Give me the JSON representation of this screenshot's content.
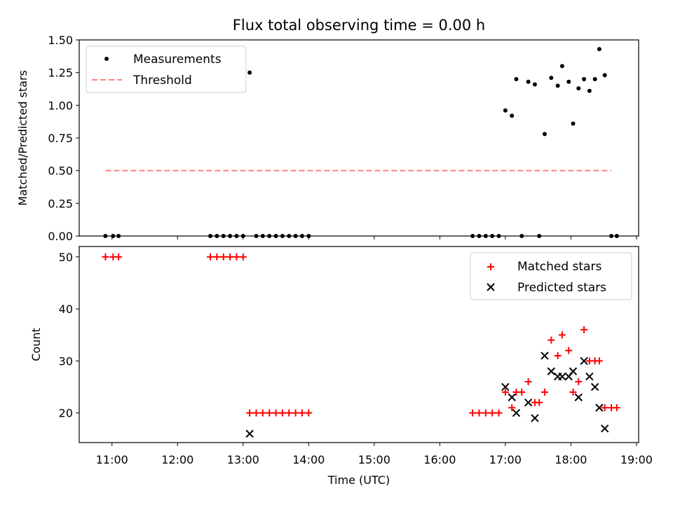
{
  "title": "Flux total observing time = 0.00 h",
  "chart_data": [
    {
      "type": "scatter",
      "panel": "top",
      "title": "Flux total observing time = 0.00 h",
      "xlabel": "",
      "ylabel": "Matched/Predicted stars",
      "ylim": [
        0.0,
        1.5
      ],
      "xlim": [
        "10:30",
        "19:02"
      ],
      "yticks": [
        "0.00",
        "0.25",
        "0.50",
        "0.75",
        "1.00",
        "1.25",
        "1.50"
      ],
      "legend_position": "top-left",
      "legend": [
        {
          "label": "Measurements",
          "marker": "dot",
          "color": "#000000"
        },
        {
          "label": "Threshold",
          "marker": "dashed-line",
          "color": "#ff8080"
        }
      ],
      "threshold": {
        "value": 0.5,
        "x_start": "10:54",
        "x_end": "18:37"
      },
      "series": [
        {
          "name": "Measurements",
          "points": [
            {
              "x": "10:54",
              "y": 0.0
            },
            {
              "x": "11:01",
              "y": 0.0
            },
            {
              "x": "11:06",
              "y": 0.0
            },
            {
              "x": "12:30",
              "y": 0.0
            },
            {
              "x": "12:36",
              "y": 0.0
            },
            {
              "x": "12:42",
              "y": 0.0
            },
            {
              "x": "12:48",
              "y": 0.0
            },
            {
              "x": "12:54",
              "y": 0.0
            },
            {
              "x": "13:00",
              "y": 0.0
            },
            {
              "x": "13:06",
              "y": 1.25
            },
            {
              "x": "13:12",
              "y": 0.0
            },
            {
              "x": "13:18",
              "y": 0.0
            },
            {
              "x": "13:24",
              "y": 0.0
            },
            {
              "x": "13:30",
              "y": 0.0
            },
            {
              "x": "13:36",
              "y": 0.0
            },
            {
              "x": "13:42",
              "y": 0.0
            },
            {
              "x": "13:48",
              "y": 0.0
            },
            {
              "x": "13:54",
              "y": 0.0
            },
            {
              "x": "14:00",
              "y": 0.0
            },
            {
              "x": "16:30",
              "y": 0.0
            },
            {
              "x": "16:36",
              "y": 0.0
            },
            {
              "x": "16:42",
              "y": 0.0
            },
            {
              "x": "16:48",
              "y": 0.0
            },
            {
              "x": "16:54",
              "y": 0.0
            },
            {
              "x": "17:00",
              "y": 0.96
            },
            {
              "x": "17:06",
              "y": 0.92
            },
            {
              "x": "17:10",
              "y": 1.2
            },
            {
              "x": "17:15",
              "y": 0.0
            },
            {
              "x": "17:21",
              "y": 1.18
            },
            {
              "x": "17:27",
              "y": 1.16
            },
            {
              "x": "17:31",
              "y": 0.0
            },
            {
              "x": "17:36",
              "y": 0.78
            },
            {
              "x": "17:42",
              "y": 1.21
            },
            {
              "x": "17:48",
              "y": 1.15
            },
            {
              "x": "17:52",
              "y": 1.3
            },
            {
              "x": "17:58",
              "y": 1.18
            },
            {
              "x": "18:02",
              "y": 0.86
            },
            {
              "x": "18:07",
              "y": 1.13
            },
            {
              "x": "18:12",
              "y": 1.2
            },
            {
              "x": "18:17",
              "y": 1.11
            },
            {
              "x": "18:22",
              "y": 1.2
            },
            {
              "x": "18:26",
              "y": 1.43
            },
            {
              "x": "18:31",
              "y": 1.23
            },
            {
              "x": "18:37",
              "y": 0.0
            },
            {
              "x": "18:42",
              "y": 0.0
            }
          ]
        }
      ]
    },
    {
      "type": "scatter",
      "panel": "bottom",
      "xlabel": "Time (UTC)",
      "ylabel": "Count",
      "ylim": [
        14.3,
        52
      ],
      "xlim": [
        "10:30",
        "19:02"
      ],
      "yticks": [
        "20",
        "30",
        "40",
        "50"
      ],
      "xticks": [
        "11:00",
        "12:00",
        "13:00",
        "14:00",
        "15:00",
        "16:00",
        "17:00",
        "18:00",
        "19:00"
      ],
      "legend_position": "top-right",
      "legend": [
        {
          "label": "Matched stars",
          "marker": "plus",
          "color": "#ff0000"
        },
        {
          "label": "Predicted stars",
          "marker": "x",
          "color": "#000000"
        }
      ],
      "series": [
        {
          "name": "Matched stars",
          "points": [
            {
              "x": "10:54",
              "y": 50
            },
            {
              "x": "11:01",
              "y": 50
            },
            {
              "x": "11:06",
              "y": 50
            },
            {
              "x": "12:30",
              "y": 50
            },
            {
              "x": "12:36",
              "y": 50
            },
            {
              "x": "12:42",
              "y": 50
            },
            {
              "x": "12:48",
              "y": 50
            },
            {
              "x": "12:54",
              "y": 50
            },
            {
              "x": "13:00",
              "y": 50
            },
            {
              "x": "13:06",
              "y": 20
            },
            {
              "x": "13:12",
              "y": 20
            },
            {
              "x": "13:18",
              "y": 20
            },
            {
              "x": "13:24",
              "y": 20
            },
            {
              "x": "13:30",
              "y": 20
            },
            {
              "x": "13:36",
              "y": 20
            },
            {
              "x": "13:42",
              "y": 20
            },
            {
              "x": "13:48",
              "y": 20
            },
            {
              "x": "13:54",
              "y": 20
            },
            {
              "x": "14:00",
              "y": 20
            },
            {
              "x": "16:30",
              "y": 20
            },
            {
              "x": "16:36",
              "y": 20
            },
            {
              "x": "16:42",
              "y": 20
            },
            {
              "x": "16:48",
              "y": 20
            },
            {
              "x": "16:54",
              "y": 20
            },
            {
              "x": "17:00",
              "y": 24
            },
            {
              "x": "17:06",
              "y": 21
            },
            {
              "x": "17:10",
              "y": 24
            },
            {
              "x": "17:15",
              "y": 24
            },
            {
              "x": "17:21",
              "y": 26
            },
            {
              "x": "17:27",
              "y": 22
            },
            {
              "x": "17:31",
              "y": 22
            },
            {
              "x": "17:36",
              "y": 24
            },
            {
              "x": "17:42",
              "y": 34
            },
            {
              "x": "17:48",
              "y": 31
            },
            {
              "x": "17:52",
              "y": 35
            },
            {
              "x": "17:58",
              "y": 32
            },
            {
              "x": "18:02",
              "y": 24
            },
            {
              "x": "18:07",
              "y": 26
            },
            {
              "x": "18:12",
              "y": 36
            },
            {
              "x": "18:17",
              "y": 30
            },
            {
              "x": "18:22",
              "y": 30
            },
            {
              "x": "18:26",
              "y": 30
            },
            {
              "x": "18:31",
              "y": 21
            },
            {
              "x": "18:37",
              "y": 21
            },
            {
              "x": "18:42",
              "y": 21
            }
          ]
        },
        {
          "name": "Predicted stars",
          "points": [
            {
              "x": "13:06",
              "y": 16
            },
            {
              "x": "17:00",
              "y": 25
            },
            {
              "x": "17:06",
              "y": 23
            },
            {
              "x": "17:10",
              "y": 20
            },
            {
              "x": "17:21",
              "y": 22
            },
            {
              "x": "17:27",
              "y": 19
            },
            {
              "x": "17:36",
              "y": 31
            },
            {
              "x": "17:42",
              "y": 28
            },
            {
              "x": "17:48",
              "y": 27
            },
            {
              "x": "17:52",
              "y": 27
            },
            {
              "x": "17:58",
              "y": 27
            },
            {
              "x": "18:02",
              "y": 28
            },
            {
              "x": "18:07",
              "y": 23
            },
            {
              "x": "18:12",
              "y": 30
            },
            {
              "x": "18:17",
              "y": 27
            },
            {
              "x": "18:22",
              "y": 25
            },
            {
              "x": "18:26",
              "y": 21
            },
            {
              "x": "18:31",
              "y": 17
            }
          ]
        }
      ]
    }
  ]
}
